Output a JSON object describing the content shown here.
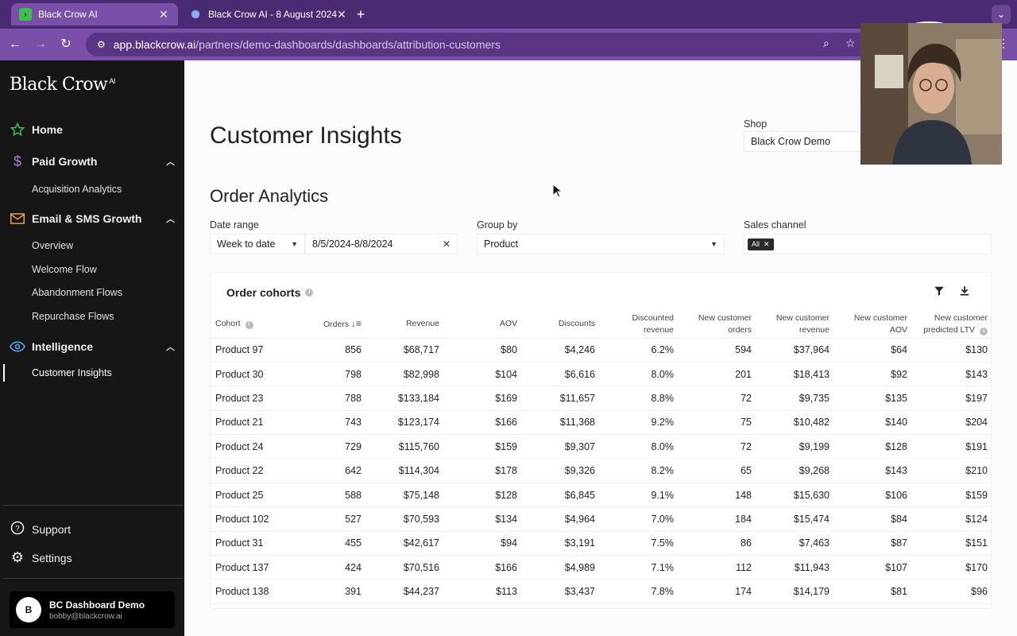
{
  "browser": {
    "tabs": [
      {
        "title": "Black Crow AI",
        "active": true
      },
      {
        "title": "Black Crow AI - 8 August 2024",
        "active": false
      }
    ],
    "url_domain": "app.blackcrow.ai",
    "url_path": "/partners/demo-dashboards/dashboards/attribution-customers"
  },
  "sidebar": {
    "logo": "Black Crow",
    "logo_sup": "AI",
    "home": "Home",
    "paid_growth": "Paid Growth",
    "acquisition_analytics": "Acquisition Analytics",
    "email_sms": "Email & SMS Growth",
    "overview": "Overview",
    "welcome_flow": "Welcome Flow",
    "abandonment_flows": "Abandonment Flows",
    "repurchase_flows": "Repurchase Flows",
    "intelligence": "Intelligence",
    "customer_insights": "Customer Insights",
    "support": "Support",
    "settings": "Settings",
    "user": {
      "initial": "B",
      "name": "BC Dashboard Demo",
      "email": "bobby@blackcrow.ai"
    }
  },
  "main": {
    "title": "Customer Insights",
    "shop_label": "Shop",
    "shop_value": "Black Crow Demo",
    "section_title": "Order Analytics",
    "date_range_label": "Date range",
    "date_preset": "Week to date",
    "date_value": "8/5/2024-8/8/2024",
    "group_by_label": "Group by",
    "group_by_value": "Product",
    "sales_channel_label": "Sales channel",
    "sales_channel_chip": "All"
  },
  "table": {
    "title": "Order cohorts",
    "headers": [
      "Cohort",
      "Orders",
      "Revenue",
      "AOV",
      "Discounts",
      "Discounted revenue",
      "New customer orders",
      "New customer revenue",
      "New customer AOV",
      "New customer predicted LTV"
    ],
    "rows": [
      [
        "Product 97",
        "856",
        "$68,717",
        "$80",
        "$4,246",
        "6.2%",
        "594",
        "$37,964",
        "$64",
        "$130"
      ],
      [
        "Product 30",
        "798",
        "$82,998",
        "$104",
        "$6,616",
        "8.0%",
        "201",
        "$18,413",
        "$92",
        "$143"
      ],
      [
        "Product 23",
        "788",
        "$133,184",
        "$169",
        "$11,657",
        "8.8%",
        "72",
        "$9,735",
        "$135",
        "$197"
      ],
      [
        "Product 21",
        "743",
        "$123,174",
        "$166",
        "$11,368",
        "9.2%",
        "75",
        "$10,482",
        "$140",
        "$204"
      ],
      [
        "Product 24",
        "729",
        "$115,760",
        "$159",
        "$9,307",
        "8.0%",
        "72",
        "$9,199",
        "$128",
        "$191"
      ],
      [
        "Product 22",
        "642",
        "$114,304",
        "$178",
        "$9,326",
        "8.2%",
        "65",
        "$9,268",
        "$143",
        "$210"
      ],
      [
        "Product 25",
        "588",
        "$75,148",
        "$128",
        "$6,845",
        "9.1%",
        "148",
        "$15,630",
        "$106",
        "$159"
      ],
      [
        "Product 102",
        "527",
        "$70,593",
        "$134",
        "$4,964",
        "7.0%",
        "184",
        "$15,474",
        "$84",
        "$124"
      ],
      [
        "Product 31",
        "455",
        "$42,617",
        "$94",
        "$3,191",
        "7.5%",
        "86",
        "$7,463",
        "$87",
        "$151"
      ],
      [
        "Product 137",
        "424",
        "$70,516",
        "$166",
        "$4,989",
        "7.1%",
        "112",
        "$11,943",
        "$107",
        "$170"
      ],
      [
        "Product 138",
        "391",
        "$44,237",
        "$113",
        "$3,437",
        "7.8%",
        "174",
        "$14,179",
        "$81",
        "$96"
      ]
    ]
  }
}
